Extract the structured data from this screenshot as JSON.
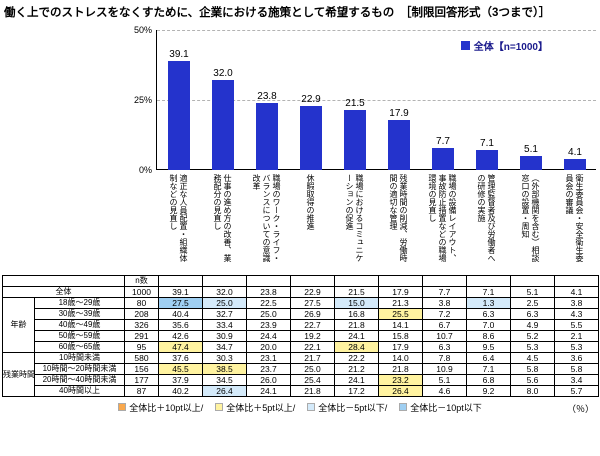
{
  "title": "働く上でのストレスをなくすために、企業における施策として希望するもの　［制限回答形式（3つまで）］",
  "legend": {
    "label": "全体【n=1000】"
  },
  "colors": {
    "bar": "#2433cc",
    "legend_text": "#1a1a8c",
    "o": "#f9a84d",
    "y": "#fff3a0",
    "b1": "#d4eafa",
    "b2": "#9fcff2"
  },
  "chart_data": {
    "type": "bar",
    "title": "働く上でのストレスをなくすために、企業における施策として希望するもの",
    "series_name": "全体【n=1000】",
    "categories": [
      "適正な人員配置・組織体制などの見直し",
      "仕事の進め方の改善、業務配分の見直し",
      "職場のワーク・ライフ・バランスについての意識改革",
      "休暇取得の推進",
      "職場におけるコミュニケーションの促進",
      "残業時間の削減、労働時間の適切な管理",
      "職場の設備レイアウト、事故防止措置などの職場環境の見直し",
      "管理監督者及び労働者への研修の実施",
      "（外部機関を含む）相談窓口の設置・周知",
      "衛生委員会・安全衛生委員会の審議"
    ],
    "values": [
      39.1,
      32.0,
      23.8,
      22.9,
      21.5,
      17.9,
      7.7,
      7.1,
      5.1,
      4.1
    ],
    "ylim": [
      0,
      50
    ],
    "yticks": [
      "50%",
      "25%",
      "0%"
    ],
    "ylabel": "%",
    "grid": "dashed horizontal at 25 and 50",
    "legend_position": "top-right",
    "bar_color": "#2433cc"
  },
  "table": {
    "n_label": "n数",
    "rows": [
      {
        "span_all": true,
        "label": "全体",
        "n": "1000",
        "values": [
          39.1,
          32.0,
          23.8,
          22.9,
          21.5,
          17.9,
          7.7,
          7.1,
          5.1,
          4.1
        ],
        "hl": [
          "",
          "",
          "",
          "",
          "",
          "",
          "",
          "",
          "",
          ""
        ]
      },
      {
        "group": "年齢",
        "group_span": 5,
        "label": "18歳～29歳",
        "n": "80",
        "values": [
          27.5,
          25.0,
          22.5,
          27.5,
          15.0,
          21.3,
          3.8,
          1.3,
          2.5,
          3.8
        ],
        "hl": [
          "b2",
          "b1",
          "",
          "",
          "b1",
          "",
          "",
          "b1",
          "",
          ""
        ]
      },
      {
        "label": "30歳～39歳",
        "n": "208",
        "values": [
          40.4,
          32.7,
          25.0,
          26.9,
          16.8,
          25.5,
          7.2,
          6.3,
          6.3,
          4.3
        ],
        "hl": [
          "",
          "",
          "",
          "",
          "",
          "y",
          "",
          "",
          "",
          ""
        ]
      },
      {
        "label": "40歳～49歳",
        "n": "326",
        "values": [
          35.6,
          33.4,
          23.9,
          22.7,
          21.8,
          14.1,
          6.7,
          7.0,
          4.9,
          5.5
        ],
        "hl": [
          "",
          "",
          "",
          "",
          "",
          "",
          "",
          "",
          "",
          ""
        ]
      },
      {
        "label": "50歳～59歳",
        "n": "291",
        "values": [
          42.6,
          30.9,
          24.4,
          19.2,
          24.1,
          15.8,
          10.7,
          8.6,
          5.2,
          2.1
        ],
        "hl": [
          "",
          "",
          "",
          "",
          "",
          "",
          "",
          "",
          "",
          ""
        ]
      },
      {
        "label": "60歳～65歳",
        "n": "95",
        "values": [
          47.4,
          34.7,
          20.0,
          22.1,
          28.4,
          17.9,
          6.3,
          9.5,
          5.3,
          5.3
        ],
        "hl": [
          "y",
          "",
          "",
          "",
          "y",
          "",
          "",
          "",
          "",
          ""
        ]
      },
      {
        "group": "残業時間",
        "group_span": 4,
        "label": "10時間未満",
        "n": "580",
        "values": [
          37.6,
          30.3,
          23.1,
          21.7,
          22.2,
          14.0,
          7.8,
          6.4,
          4.5,
          3.6
        ],
        "hl": [
          "",
          "",
          "",
          "",
          "",
          "",
          "",
          "",
          "",
          ""
        ]
      },
      {
        "label": "10時間～20時間未満",
        "n": "156",
        "values": [
          45.5,
          38.5,
          23.7,
          25.0,
          21.2,
          21.8,
          10.9,
          7.1,
          5.8,
          5.8
        ],
        "hl": [
          "y",
          "y",
          "",
          "",
          "",
          "",
          "",
          "",
          "",
          ""
        ]
      },
      {
        "label": "20時間～40時間未満",
        "n": "177",
        "values": [
          37.9,
          34.5,
          26.0,
          25.4,
          24.1,
          23.2,
          5.1,
          6.8,
          5.6,
          3.4
        ],
        "hl": [
          "",
          "",
          "",
          "",
          "",
          "y",
          "",
          "",
          "",
          ""
        ]
      },
      {
        "label": "40時間以上",
        "n": "87",
        "values": [
          40.2,
          26.4,
          24.1,
          21.8,
          17.2,
          26.4,
          4.6,
          9.2,
          8.0,
          5.7
        ],
        "hl": [
          "",
          "b1",
          "",
          "",
          "",
          "y",
          "",
          "",
          "",
          ""
        ]
      }
    ]
  },
  "footer": {
    "items": [
      {
        "label": "全体比＋10pt以上/",
        "color": "#f9a84d"
      },
      {
        "label": "全体比＋5pt以上/",
        "color": "#fff3a0"
      },
      {
        "label": "全体比－5pt以下/",
        "color": "#d4eafa"
      },
      {
        "label": "全体比－10pt以下",
        "color": "#9fcff2"
      }
    ],
    "unit": "（％）"
  }
}
